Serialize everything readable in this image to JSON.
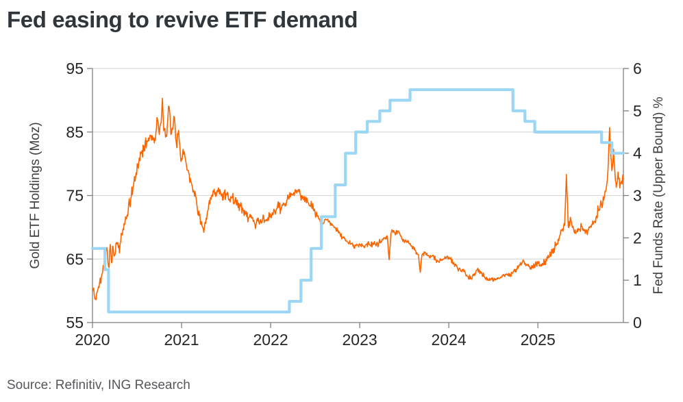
{
  "header": {
    "title": "Fed easing to revive ETF demand"
  },
  "footer": {
    "source_note": "Source: Refinitiv, ING Research"
  },
  "palette": {
    "gold_line": "#FB6500",
    "fed_line": "#9CD6F5",
    "grid": "#D9D9D9",
    "axis": "#7F7F7F",
    "tick_text": "#262626",
    "axis_title_text": "#3C4043",
    "title_text": "#31363B",
    "source_text": "#55575B",
    "background": "#FFFFFF"
  },
  "chart_data": {
    "type": "line",
    "title": "Fed easing to revive ETF demand",
    "source": "Source: Refinitiv, ING Research",
    "legend_position": "none",
    "x_axis": {
      "min": 2020,
      "max": 2025.96,
      "ticks": [
        2020,
        2021,
        2022,
        2023,
        2024,
        2025
      ]
    },
    "y_left": {
      "label": "Gold ETF  Holdings (Moz)",
      "min": 55,
      "max": 95,
      "ticks": [
        55,
        65,
        75,
        85,
        95
      ]
    },
    "y_right": {
      "label": "Fed Funds Rate (Upper Bound) %",
      "min": 0,
      "max": 6,
      "ticks": [
        0,
        1,
        2,
        3,
        4,
        5,
        6
      ]
    },
    "gridline_values_left_axis": [
      65,
      75,
      85,
      95
    ],
    "series": [
      {
        "name": "Gold ETF Holdings (Moz)",
        "axis": "left",
        "style": "jagged-line",
        "color": "#FB6500",
        "stroke_width": 1.6,
        "noise_seed": 42,
        "sample_step": 0.006,
        "noise_bands": [
          [
            2020.0,
            2021.05,
            0.95
          ],
          [
            2021.05,
            2022.55,
            0.7
          ],
          [
            2022.55,
            2023.6,
            0.38
          ],
          [
            2023.6,
            2024.95,
            0.3
          ],
          [
            2024.95,
            2025.6,
            0.5
          ],
          [
            2025.6,
            2025.96,
            0.85
          ]
        ],
        "keypoints": [
          [
            2020.0,
            60.3
          ],
          [
            2020.02,
            59.4
          ],
          [
            2020.04,
            58.6
          ],
          [
            2020.06,
            60.2
          ],
          [
            2020.08,
            61.3
          ],
          [
            2020.1,
            62.2
          ],
          [
            2020.12,
            64.0
          ],
          [
            2020.14,
            65.6
          ],
          [
            2020.16,
            66.8
          ],
          [
            2020.18,
            63.8
          ],
          [
            2020.2,
            67.3
          ],
          [
            2020.215,
            64.4
          ],
          [
            2020.23,
            67.0
          ],
          [
            2020.25,
            65.6
          ],
          [
            2020.27,
            67.6
          ],
          [
            2020.29,
            66.8
          ],
          [
            2020.31,
            67.4
          ],
          [
            2020.33,
            68.8
          ],
          [
            2020.36,
            70.4
          ],
          [
            2020.4,
            72.4
          ],
          [
            2020.43,
            74.5
          ],
          [
            2020.46,
            76.6
          ],
          [
            2020.49,
            78.6
          ],
          [
            2020.52,
            80.3
          ],
          [
            2020.55,
            81.7
          ],
          [
            2020.58,
            82.8
          ],
          [
            2020.61,
            83.6
          ],
          [
            2020.64,
            84.1
          ],
          [
            2020.67,
            84.4
          ],
          [
            2020.7,
            84.0
          ],
          [
            2020.73,
            87.0
          ],
          [
            2020.75,
            84.6
          ],
          [
            2020.77,
            86.4
          ],
          [
            2020.785,
            90.3
          ],
          [
            2020.8,
            85.2
          ],
          [
            2020.82,
            84.2
          ],
          [
            2020.84,
            86.0
          ],
          [
            2020.86,
            89.0
          ],
          [
            2020.88,
            84.6
          ],
          [
            2020.9,
            85.4
          ],
          [
            2020.92,
            87.3
          ],
          [
            2020.94,
            83.4
          ],
          [
            2020.96,
            84.6
          ],
          [
            2020.98,
            83.0
          ],
          [
            2021.0,
            80.8
          ],
          [
            2021.03,
            81.9
          ],
          [
            2021.05,
            80.2
          ],
          [
            2021.08,
            78.6
          ],
          [
            2021.11,
            77.0
          ],
          [
            2021.14,
            75.6
          ],
          [
            2021.17,
            73.8
          ],
          [
            2021.2,
            71.8
          ],
          [
            2021.23,
            70.2
          ],
          [
            2021.25,
            69.2
          ],
          [
            2021.27,
            70.6
          ],
          [
            2021.3,
            72.8
          ],
          [
            2021.33,
            74.4
          ],
          [
            2021.36,
            75.6
          ],
          [
            2021.39,
            75.0
          ],
          [
            2021.42,
            75.9
          ],
          [
            2021.45,
            74.9
          ],
          [
            2021.48,
            75.4
          ],
          [
            2021.51,
            75.1
          ],
          [
            2021.54,
            74.4
          ],
          [
            2021.57,
            74.8
          ],
          [
            2021.6,
            74.2
          ],
          [
            2021.63,
            73.6
          ],
          [
            2021.66,
            73.3
          ],
          [
            2021.69,
            72.7
          ],
          [
            2021.72,
            72.2
          ],
          [
            2021.75,
            71.4
          ],
          [
            2021.78,
            71.9
          ],
          [
            2021.81,
            71.1
          ],
          [
            2021.83,
            69.8
          ],
          [
            2021.85,
            71.4
          ],
          [
            2021.88,
            70.9
          ],
          [
            2021.91,
            71.3
          ],
          [
            2021.94,
            71.0
          ],
          [
            2021.97,
            71.5
          ],
          [
            2022.0,
            71.8
          ],
          [
            2022.03,
            72.2
          ],
          [
            2022.06,
            72.6
          ],
          [
            2022.09,
            73.1
          ],
          [
            2022.12,
            72.8
          ],
          [
            2022.15,
            73.6
          ],
          [
            2022.18,
            74.2
          ],
          [
            2022.21,
            74.8
          ],
          [
            2022.24,
            75.1
          ],
          [
            2022.27,
            75.4
          ],
          [
            2022.3,
            75.7
          ],
          [
            2022.33,
            75.3
          ],
          [
            2022.36,
            74.9
          ],
          [
            2022.39,
            74.4
          ],
          [
            2022.42,
            73.9
          ],
          [
            2022.45,
            73.3
          ],
          [
            2022.48,
            72.7
          ],
          [
            2022.51,
            72.0
          ],
          [
            2022.54,
            71.3
          ],
          [
            2022.57,
            70.5
          ],
          [
            2022.6,
            70.8
          ],
          [
            2022.63,
            71.2
          ],
          [
            2022.66,
            71.0
          ],
          [
            2022.69,
            70.5
          ],
          [
            2022.72,
            70.0
          ],
          [
            2022.75,
            69.4
          ],
          [
            2022.78,
            68.9
          ],
          [
            2022.81,
            68.4
          ],
          [
            2022.84,
            67.9
          ],
          [
            2022.87,
            67.6
          ],
          [
            2022.9,
            67.4
          ],
          [
            2022.93,
            67.2
          ],
          [
            2022.96,
            67.1
          ],
          [
            2023.0,
            67.3
          ],
          [
            2023.04,
            67.0
          ],
          [
            2023.08,
            67.4
          ],
          [
            2023.12,
            67.1
          ],
          [
            2023.16,
            67.5
          ],
          [
            2023.2,
            67.3
          ],
          [
            2023.24,
            67.8
          ],
          [
            2023.28,
            68.3
          ],
          [
            2023.31,
            68.6
          ],
          [
            2023.33,
            64.9
          ],
          [
            2023.35,
            69.0
          ],
          [
            2023.38,
            69.5
          ],
          [
            2023.4,
            68.8
          ],
          [
            2023.43,
            69.4
          ],
          [
            2023.46,
            68.6
          ],
          [
            2023.49,
            68.1
          ],
          [
            2023.52,
            67.8
          ],
          [
            2023.55,
            67.5
          ],
          [
            2023.58,
            67.1
          ],
          [
            2023.61,
            66.5
          ],
          [
            2023.64,
            66.0
          ],
          [
            2023.66,
            65.7
          ],
          [
            2023.68,
            62.9
          ],
          [
            2023.7,
            65.7
          ],
          [
            2023.73,
            66.0
          ],
          [
            2023.76,
            65.5
          ],
          [
            2023.79,
            65.2
          ],
          [
            2023.82,
            65.6
          ],
          [
            2023.85,
            64.9
          ],
          [
            2023.88,
            64.6
          ],
          [
            2023.91,
            64.8
          ],
          [
            2023.94,
            65.0
          ],
          [
            2023.98,
            65.4
          ],
          [
            2024.02,
            65.0
          ],
          [
            2024.06,
            64.2
          ],
          [
            2024.1,
            63.5
          ],
          [
            2024.14,
            63.1
          ],
          [
            2024.17,
            63.0
          ],
          [
            2024.21,
            62.3
          ],
          [
            2024.25,
            61.9
          ],
          [
            2024.28,
            62.4
          ],
          [
            2024.32,
            63.3
          ],
          [
            2024.36,
            63.0
          ],
          [
            2024.4,
            62.2
          ],
          [
            2024.44,
            61.7
          ],
          [
            2024.48,
            62.0
          ],
          [
            2024.52,
            61.7
          ],
          [
            2024.56,
            62.0
          ],
          [
            2024.6,
            62.4
          ],
          [
            2024.64,
            62.6
          ],
          [
            2024.68,
            62.3
          ],
          [
            2024.72,
            62.9
          ],
          [
            2024.76,
            63.4
          ],
          [
            2024.8,
            64.1
          ],
          [
            2024.84,
            64.7
          ],
          [
            2024.88,
            64.1
          ],
          [
            2024.92,
            63.7
          ],
          [
            2024.96,
            64.0
          ],
          [
            2025.0,
            64.3
          ],
          [
            2025.04,
            63.9
          ],
          [
            2025.08,
            64.6
          ],
          [
            2025.12,
            65.2
          ],
          [
            2025.16,
            66.0
          ],
          [
            2025.2,
            67.1
          ],
          [
            2025.24,
            68.4
          ],
          [
            2025.27,
            69.6
          ],
          [
            2025.3,
            70.3
          ],
          [
            2025.32,
            78.3
          ],
          [
            2025.34,
            70.2
          ],
          [
            2025.37,
            71.2
          ],
          [
            2025.4,
            69.8
          ],
          [
            2025.43,
            69.2
          ],
          [
            2025.46,
            69.6
          ],
          [
            2025.49,
            70.2
          ],
          [
            2025.52,
            69.6
          ],
          [
            2025.55,
            69.2
          ],
          [
            2025.58,
            69.9
          ],
          [
            2025.61,
            70.4
          ],
          [
            2025.64,
            71.0
          ],
          [
            2025.66,
            71.8
          ],
          [
            2025.68,
            72.6
          ],
          [
            2025.7,
            73.4
          ],
          [
            2025.72,
            73.1
          ],
          [
            2025.74,
            74.3
          ],
          [
            2025.76,
            75.6
          ],
          [
            2025.78,
            77.5
          ],
          [
            2025.79,
            79.8
          ],
          [
            2025.805,
            85.7
          ],
          [
            2025.82,
            81.0
          ],
          [
            2025.835,
            79.3
          ],
          [
            2025.85,
            82.3
          ],
          [
            2025.865,
            78.6
          ],
          [
            2025.88,
            76.3
          ],
          [
            2025.9,
            78.7
          ],
          [
            2025.92,
            76.2
          ],
          [
            2025.94,
            77.3
          ],
          [
            2025.96,
            77.6
          ]
        ]
      },
      {
        "name": "Fed Funds Rate (Upper Bound) %",
        "axis": "right",
        "style": "step",
        "color": "#9CD6F5",
        "stroke_width": 4.2,
        "points": [
          [
            2020.0,
            1.75
          ],
          [
            2020.14,
            1.25
          ],
          [
            2020.18,
            0.25
          ],
          [
            2022.21,
            0.5
          ],
          [
            2022.34,
            1.0
          ],
          [
            2022.455,
            1.75
          ],
          [
            2022.57,
            2.5
          ],
          [
            2022.725,
            3.25
          ],
          [
            2022.84,
            4.0
          ],
          [
            2022.955,
            4.5
          ],
          [
            2023.085,
            4.75
          ],
          [
            2023.225,
            5.0
          ],
          [
            2023.34,
            5.25
          ],
          [
            2023.565,
            5.5
          ],
          [
            2024.72,
            5.0
          ],
          [
            2024.855,
            4.75
          ],
          [
            2024.965,
            4.5
          ],
          [
            2025.715,
            4.25
          ],
          [
            2025.83,
            4.0
          ]
        ]
      }
    ]
  }
}
